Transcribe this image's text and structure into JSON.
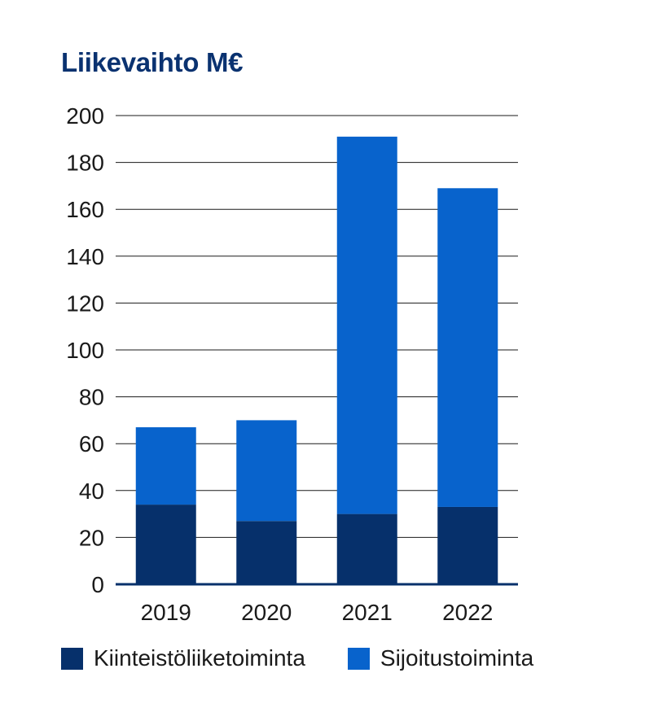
{
  "chart_data": {
    "type": "bar",
    "stacked": true,
    "title": "Liikevaihto M€",
    "categories": [
      "2019",
      "2020",
      "2021",
      "2022"
    ],
    "series": [
      {
        "name": "Kiinteistöliiketoiminta",
        "color": "#06306b",
        "values": [
          34,
          27,
          30,
          33
        ]
      },
      {
        "name": "Sijoitustoiminta",
        "color": "#0863cc",
        "values": [
          33,
          43,
          161,
          136
        ]
      }
    ],
    "ylim": [
      0,
      200
    ],
    "yticks": [
      0,
      20,
      40,
      60,
      80,
      100,
      120,
      140,
      160,
      180,
      200
    ],
    "xlabel": "",
    "ylabel": "",
    "grid": true,
    "legend_position": "bottom",
    "gridline_color": "#1a1a1a",
    "axis_color": "#06306b"
  }
}
